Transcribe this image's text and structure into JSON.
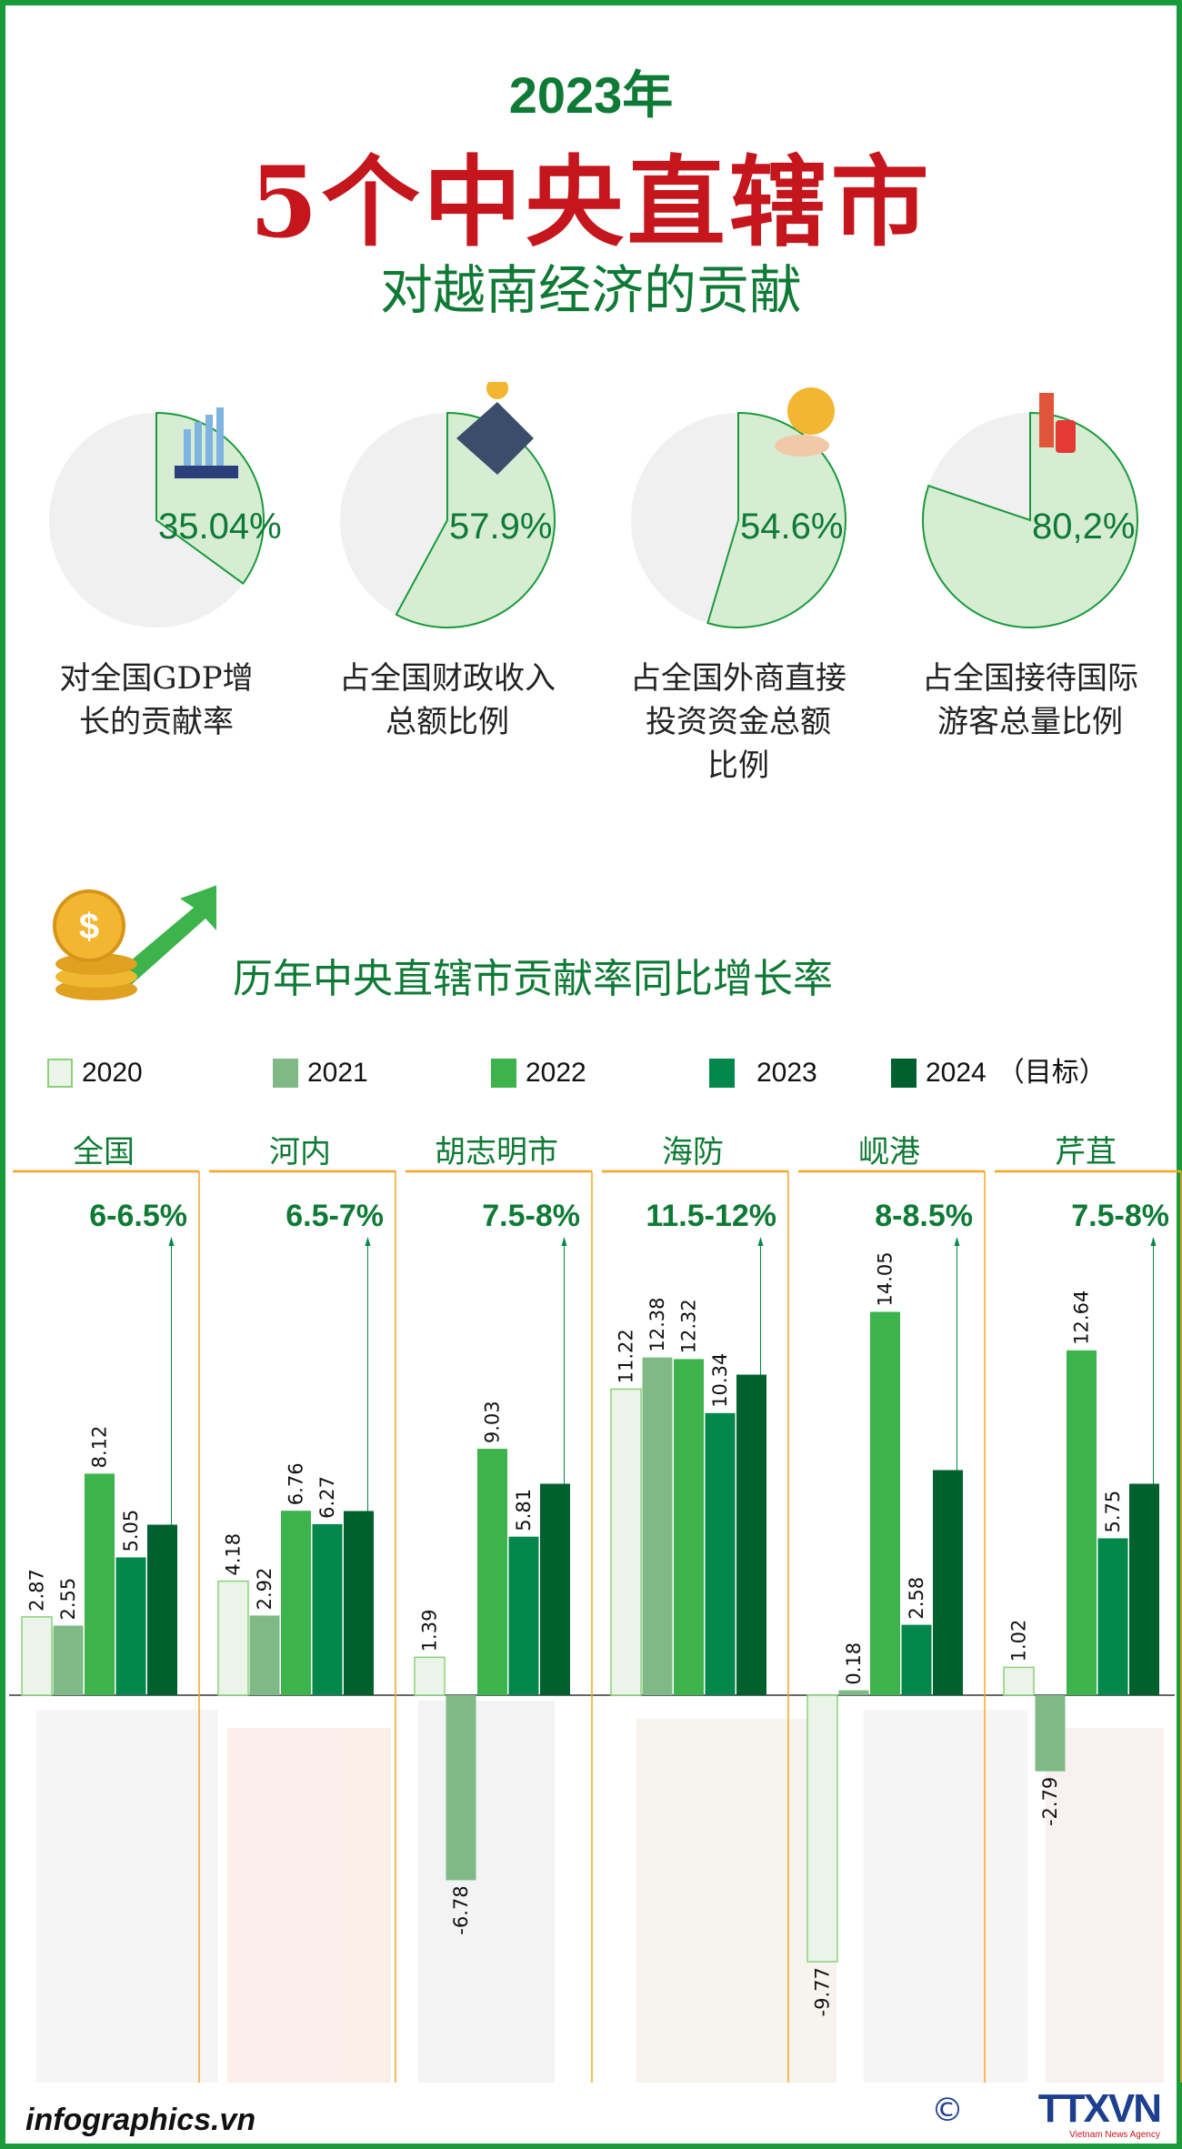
{
  "header": {
    "year": "2023年",
    "title": "5个中央直辖市",
    "subtitle": "对越南经济的贡献"
  },
  "pies": [
    {
      "value": 35.04,
      "label_text": "35.04%",
      "caption_line1": "对全国GDP增",
      "caption_line2": "长的贡献率",
      "caption_line3": "",
      "icon": "gdp-chart-icon"
    },
    {
      "value": 57.9,
      "label_text": "57.9%",
      "caption_line1": "占全国财政收入",
      "caption_line2": "总额比例",
      "caption_line3": "",
      "icon": "bank-icon"
    },
    {
      "value": 54.6,
      "label_text": "54.6%",
      "caption_line1": "占全国外商直接",
      "caption_line2": "投资资金总额",
      "caption_line3": "比例",
      "icon": "dollar-hand-icon"
    },
    {
      "value": 80.2,
      "label_text": "80,2%",
      "caption_line1": "占全国接待国际",
      "caption_line2": "游客总量比例",
      "caption_line3": "",
      "icon": "tourist-icon"
    }
  ],
  "colors": {
    "pie_fill": "#d6edd4",
    "pie_rest": "#f0f0f0",
    "pie_stroke": "#1b9a3c",
    "title_red": "#c4161c",
    "green_text": "#0f7a35",
    "divider": "#f5a623",
    "2020": "#eaf4e8",
    "2021": "#7fba86",
    "2022": "#3cb44b",
    "2023": "#03874a",
    "2024": "#00612e"
  },
  "chart_data": {
    "type": "bar",
    "title": "历年中央直辖市贡献率同比增长率",
    "legend_position": "top",
    "legend": [
      "2020",
      "2021",
      "2022",
      "2023",
      "2024"
    ],
    "legend_note": "（目标）",
    "categories": [
      "全国",
      "河内",
      "胡志明市",
      "海防",
      "岘港",
      "芹苴"
    ],
    "targets_2024": [
      "6-6.5%",
      "6.5-7%",
      "7.5-8%",
      "11.5-12%",
      "8-8.5%",
      "7.5-8%"
    ],
    "series": [
      {
        "name": "2020",
        "values": [
          2.87,
          4.18,
          1.39,
          11.22,
          -9.77,
          1.02
        ]
      },
      {
        "name": "2021",
        "values": [
          2.55,
          2.92,
          -6.78,
          12.38,
          0.18,
          -2.79
        ]
      },
      {
        "name": "2022",
        "values": [
          8.12,
          6.76,
          9.03,
          12.32,
          14.05,
          12.64
        ]
      },
      {
        "name": "2023",
        "values": [
          5.05,
          6.27,
          5.81,
          10.34,
          2.58,
          5.75
        ]
      },
      {
        "name": "2024",
        "values": [
          6.25,
          6.75,
          7.75,
          11.75,
          8.25,
          7.75
        ],
        "labels_shown": false
      }
    ],
    "ylim": [
      -10,
      15
    ],
    "grid": false
  },
  "footer": {
    "site": "infographics.vn",
    "copyright": "©",
    "logo": "TTXVN",
    "logo_sub": "Vietnam News Agency"
  }
}
